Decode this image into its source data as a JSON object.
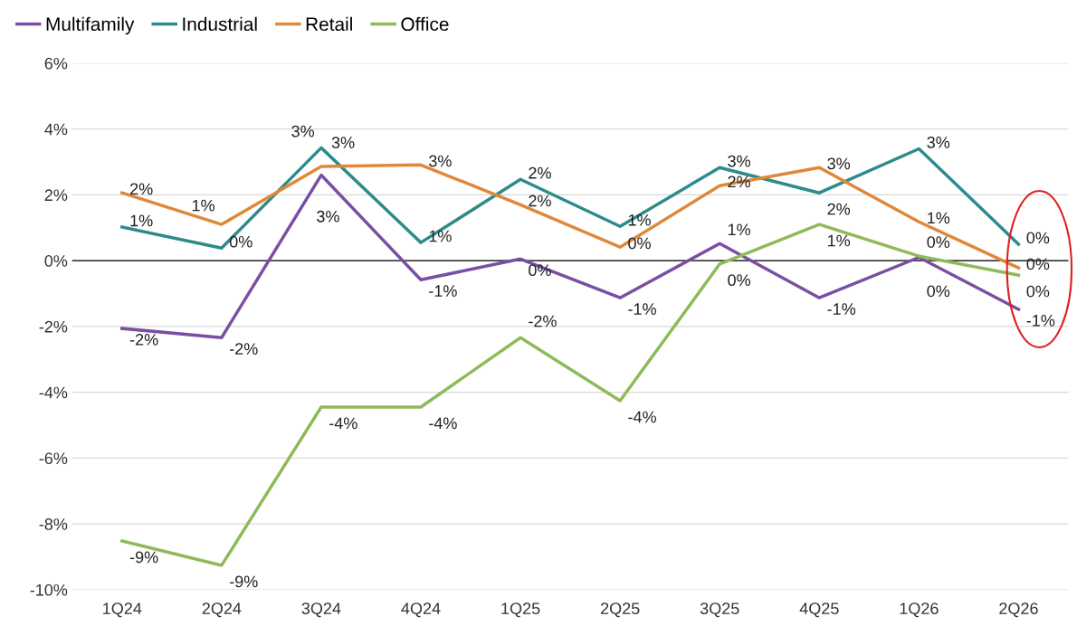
{
  "chart_data": {
    "type": "line",
    "categories": [
      "1Q24",
      "2Q24",
      "3Q24",
      "4Q24",
      "1Q25",
      "2Q25",
      "3Q25",
      "4Q25",
      "1Q26",
      "2Q26"
    ],
    "ylim": [
      -10,
      6
    ],
    "yticks": [
      {
        "value": -10,
        "label": "-10%"
      },
      {
        "value": -8,
        "label": "-8%"
      },
      {
        "value": -6,
        "label": "-6%"
      },
      {
        "value": -4,
        "label": "-4%"
      },
      {
        "value": -2,
        "label": "-2%"
      },
      {
        "value": 0,
        "label": "0%"
      },
      {
        "value": 2,
        "label": "2%"
      },
      {
        "value": 4,
        "label": "4%"
      },
      {
        "value": 6,
        "label": "6%"
      }
    ],
    "grid": "y",
    "legend": "top left",
    "marker": "none",
    "line_style": "solid",
    "ref_lines": [
      {
        "axis": "y",
        "value": 0,
        "color": "#000000"
      }
    ],
    "series": [
      {
        "name": "Multifamily",
        "color": "#7a4fa3",
        "values": [
          -2.06,
          -2.34,
          2.6,
          -0.58,
          0.05,
          -1.13,
          0.52,
          -1.13,
          0.1,
          -1.48
        ],
        "value_labels": [
          "-2%",
          "-2%",
          "3%",
          "-1%",
          "0%",
          "-1%",
          "1%",
          "-1%",
          "0%",
          "-1%"
        ]
      },
      {
        "name": "Industrial",
        "color": "#2e8b8b",
        "values": [
          1.02,
          0.38,
          3.43,
          0.55,
          2.47,
          1.04,
          2.83,
          2.06,
          3.4,
          0.5
        ],
        "value_labels": [
          "1%",
          "0%",
          "3%",
          "1%",
          "2%",
          "1%",
          "3%",
          "2%",
          "3%",
          "0%"
        ]
      },
      {
        "name": "Retail",
        "color": "#e0883a",
        "values": [
          2.06,
          1.1,
          2.86,
          2.91,
          1.7,
          0.41,
          2.28,
          2.83,
          1.18,
          -0.22
        ],
        "value_labels": [
          "2%",
          "1%",
          "3%",
          "3%",
          "2%",
          "0%",
          "2%",
          "3%",
          "1%",
          "0%"
        ]
      },
      {
        "name": "Office",
        "color": "#8fba5a",
        "values": [
          -8.52,
          -9.26,
          -4.45,
          -4.45,
          -2.34,
          -4.26,
          -0.1,
          1.1,
          0.14,
          -0.44
        ],
        "value_labels": [
          "-9%",
          "-9%",
          "-4%",
          "-4%",
          "-2%",
          "-4%",
          "0%",
          "1%",
          "0%",
          "0%"
        ]
      }
    ]
  }
}
